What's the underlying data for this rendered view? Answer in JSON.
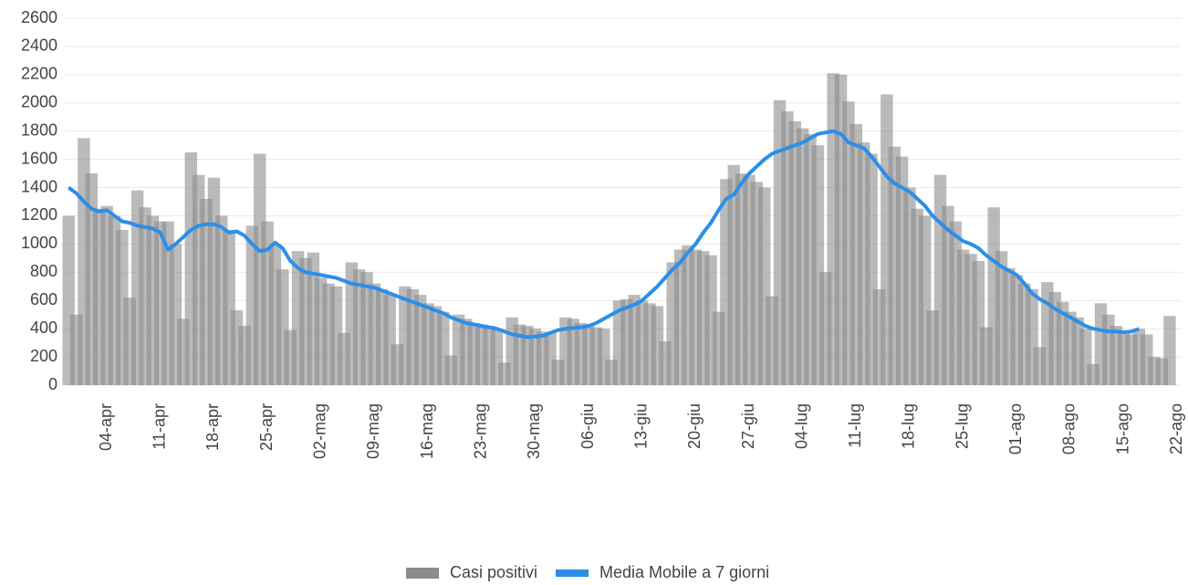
{
  "chart_data": {
    "type": "bar",
    "categories": [
      null,
      null,
      null,
      null,
      null,
      "04-apr",
      null,
      null,
      null,
      null,
      null,
      null,
      "11-apr",
      null,
      null,
      null,
      null,
      null,
      null,
      "18-apr",
      null,
      null,
      null,
      null,
      null,
      null,
      "25-apr",
      null,
      null,
      null,
      null,
      null,
      null,
      "02-mag",
      null,
      null,
      null,
      null,
      null,
      null,
      "09-mag",
      null,
      null,
      null,
      null,
      null,
      null,
      "16-mag",
      null,
      null,
      null,
      null,
      null,
      null,
      "23-mag",
      null,
      null,
      null,
      null,
      null,
      null,
      "30-mag",
      null,
      null,
      null,
      null,
      null,
      null,
      "06-giu",
      null,
      null,
      null,
      null,
      null,
      null,
      "13-giu",
      null,
      null,
      null,
      null,
      null,
      null,
      "20-giu",
      null,
      null,
      null,
      null,
      null,
      null,
      "27-giu",
      null,
      null,
      null,
      null,
      null,
      null,
      "04-lug",
      null,
      null,
      null,
      null,
      null,
      null,
      "11-lug",
      null,
      null,
      null,
      null,
      null,
      null,
      "18-lug",
      null,
      null,
      null,
      null,
      null,
      null,
      "25-lug",
      null,
      null,
      null,
      null,
      null,
      null,
      "01-ago",
      null,
      null,
      null,
      null,
      null,
      null,
      "08-ago",
      null,
      null,
      null,
      null,
      null,
      null,
      "15-ago",
      null,
      null,
      null,
      null,
      null,
      null,
      "22-ago"
    ],
    "series": [
      {
        "name": "Casi positivi",
        "type": "bar",
        "color": "#8c8c8c",
        "values": [
          1200,
          500,
          1750,
          1500,
          1250,
          1270,
          1200,
          1100,
          620,
          1380,
          1260,
          1200,
          1160,
          1160,
          1000,
          470,
          1650,
          1490,
          1320,
          1470,
          1200,
          1100,
          530,
          420,
          1130,
          1640,
          1160,
          1000,
          820,
          390,
          950,
          900,
          940,
          760,
          720,
          700,
          370,
          870,
          820,
          800,
          720,
          680,
          640,
          290,
          700,
          680,
          640,
          580,
          560,
          520,
          210,
          500,
          470,
          440,
          430,
          420,
          400,
          160,
          480,
          430,
          420,
          400,
          380,
          370,
          180,
          480,
          470,
          440,
          420,
          410,
          400,
          180,
          600,
          610,
          640,
          600,
          580,
          560,
          310,
          870,
          960,
          990,
          960,
          950,
          920,
          520,
          1460,
          1560,
          1500,
          1490,
          1440,
          1400,
          630,
          2020,
          1940,
          1870,
          1820,
          1780,
          1700,
          800,
          2210,
          2200,
          2010,
          1850,
          1720,
          1640,
          680,
          2060,
          1690,
          1620,
          1400,
          1250,
          1200,
          530,
          1490,
          1270,
          1160,
          960,
          930,
          880,
          410,
          1260,
          950,
          830,
          780,
          720,
          680,
          270,
          730,
          660,
          590,
          520,
          480,
          400,
          150,
          580,
          500,
          420,
          380,
          360,
          400,
          360,
          200,
          190,
          490,
          null
        ]
      },
      {
        "name": "Media Mobile a 7 giorni",
        "type": "line",
        "color": "#2b8fe8",
        "values": [
          1400,
          1360,
          1300,
          1250,
          1230,
          1240,
          1200,
          1160,
          1150,
          1130,
          1120,
          1110,
          1080,
          960,
          1000,
          1050,
          1100,
          1130,
          1140,
          1140,
          1120,
          1080,
          1090,
          1060,
          1000,
          950,
          960,
          1010,
          970,
          880,
          830,
          800,
          790,
          780,
          770,
          760,
          740,
          720,
          710,
          700,
          690,
          670,
          650,
          630,
          610,
          590,
          570,
          550,
          530,
          510,
          480,
          460,
          440,
          430,
          420,
          410,
          400,
          380,
          360,
          350,
          340,
          345,
          350,
          370,
          390,
          400,
          405,
          410,
          420,
          440,
          470,
          500,
          530,
          550,
          570,
          600,
          650,
          700,
          760,
          820,
          870,
          940,
          1000,
          1080,
          1150,
          1240,
          1320,
          1350,
          1430,
          1500,
          1550,
          1600,
          1640,
          1660,
          1680,
          1700,
          1720,
          1750,
          1780,
          1790,
          1800,
          1780,
          1720,
          1700,
          1680,
          1620,
          1550,
          1480,
          1430,
          1400,
          1370,
          1320,
          1270,
          1200,
          1150,
          1100,
          1060,
          1020,
          1000,
          970,
          920,
          880,
          840,
          810,
          780,
          720,
          650,
          610,
          580,
          540,
          510,
          480,
          450,
          420,
          400,
          390,
          380,
          380,
          375,
          380,
          400,
          null,
          null,
          null,
          null,
          null
        ]
      }
    ],
    "ylim": [
      0,
      2600
    ],
    "yticks": [
      0,
      200,
      400,
      600,
      800,
      1000,
      1200,
      1400,
      1600,
      1800,
      2000,
      2200,
      2400,
      2600
    ],
    "grid": true,
    "legend": "bottom"
  }
}
